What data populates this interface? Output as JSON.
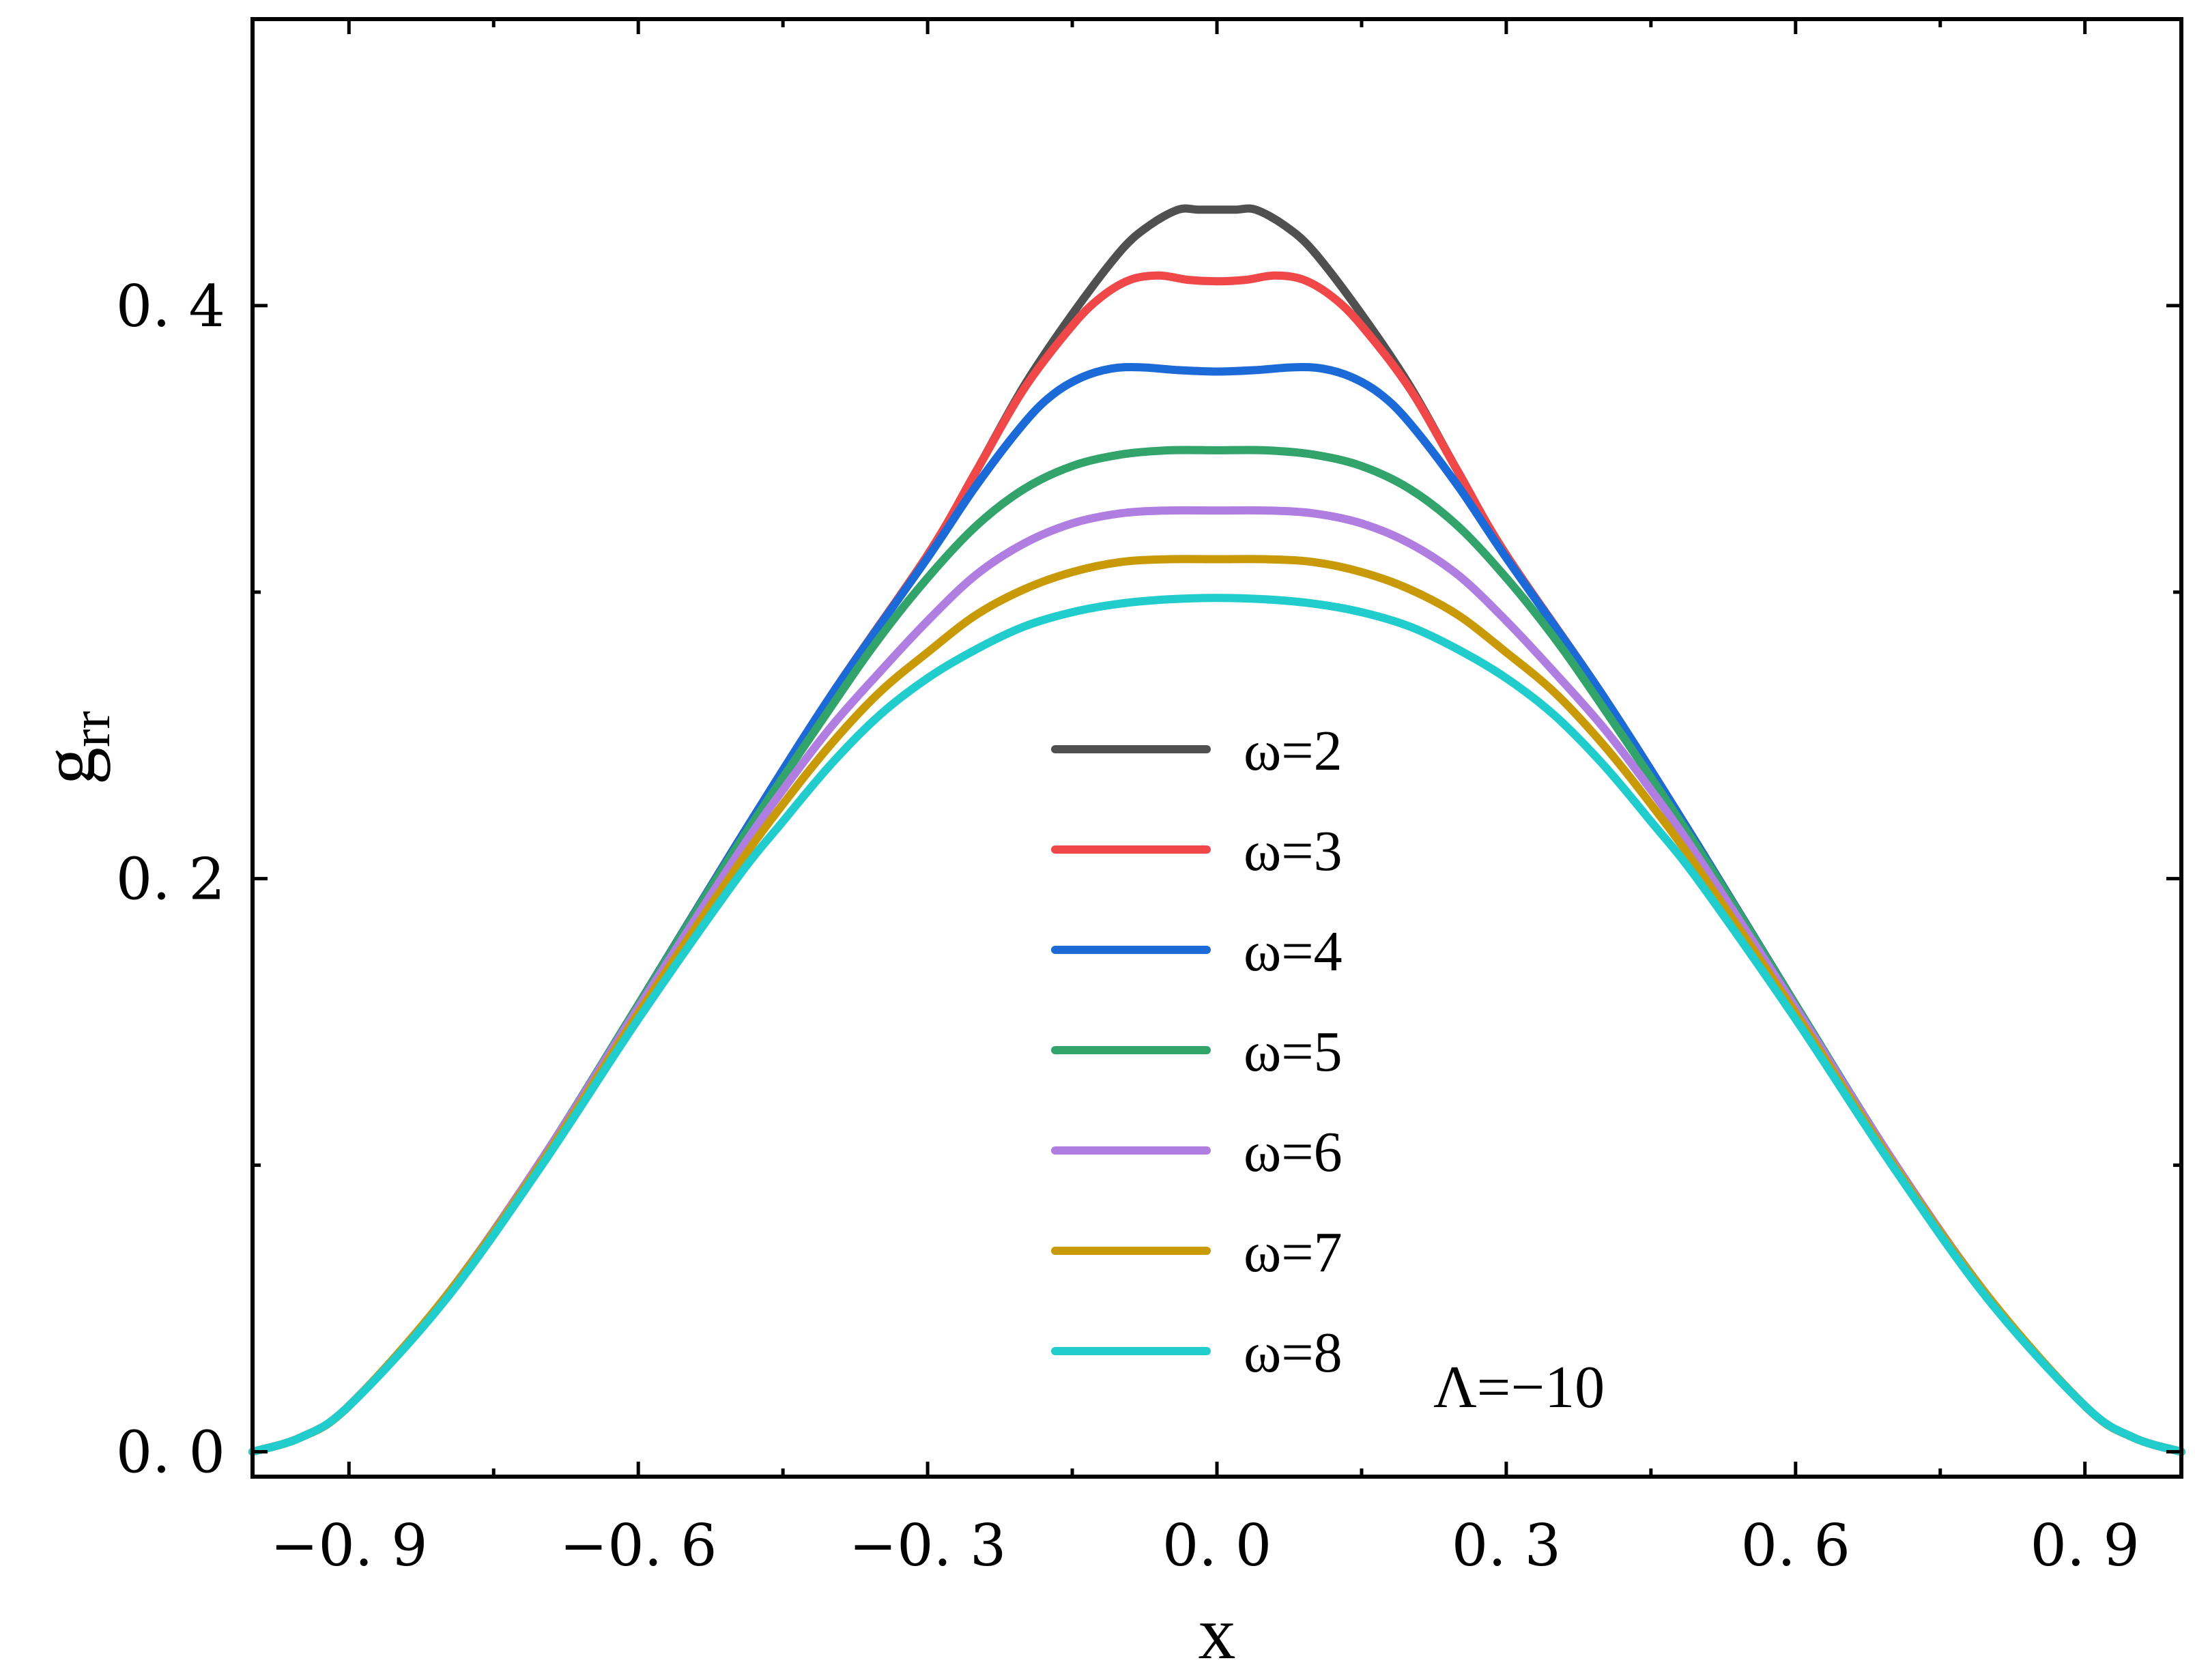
{
  "chart_data": {
    "type": "line",
    "title": "",
    "xlabel": "x",
    "ylabel_base": "g",
    "ylabel_sub": "rr",
    "xlim": [
      -1.0,
      1.0
    ],
    "ylim": [
      -0.0087,
      0.5
    ],
    "x_ticks": [
      -0.9,
      -0.6,
      -0.3,
      0.0,
      0.3,
      0.6,
      0.9
    ],
    "x_tick_labels": [
      "−0. 9",
      "−0. 6",
      "−0. 3",
      "0. 0",
      "0. 3",
      "0. 6",
      "0. 9"
    ],
    "x_minor_ticks": [
      -0.75,
      -0.45,
      -0.15,
      0.15,
      0.45,
      0.75
    ],
    "y_ticks": [
      0.0,
      0.2,
      0.4
    ],
    "y_tick_labels": [
      "0. 0",
      "0. 2",
      "0. 4"
    ],
    "y_minor_ticks": [
      0.1,
      0.3
    ],
    "annotation": "Λ=−10",
    "grid": false,
    "legend_position": "center-bottom",
    "series": [
      {
        "name": "ω=2",
        "color": "#505050",
        "x": [
          -1.0,
          -0.95,
          -0.9,
          -0.8,
          -0.7,
          -0.6,
          -0.5,
          -0.4,
          -0.3,
          -0.25,
          -0.2,
          -0.15,
          -0.1,
          -0.07,
          -0.04,
          -0.02,
          0.0,
          0.02,
          0.04,
          0.07,
          0.1,
          0.15,
          0.2,
          0.25,
          0.3,
          0.4,
          0.5,
          0.6,
          0.7,
          0.8,
          0.9,
          0.95,
          1.0
        ],
        "y": [
          0.0,
          0.005,
          0.016,
          0.054,
          0.102,
          0.156,
          0.211,
          0.264,
          0.313,
          0.342,
          0.372,
          0.397,
          0.419,
          0.428,
          0.4335,
          0.4335,
          0.4335,
          0.4335,
          0.4335,
          0.428,
          0.419,
          0.397,
          0.372,
          0.342,
          0.313,
          0.264,
          0.211,
          0.156,
          0.102,
          0.054,
          0.016,
          0.005,
          0.0
        ]
      },
      {
        "name": "ω=3",
        "color": "#f04848",
        "x": [
          -1.0,
          -0.95,
          -0.9,
          -0.8,
          -0.7,
          -0.6,
          -0.5,
          -0.4,
          -0.3,
          -0.25,
          -0.2,
          -0.15,
          -0.12,
          -0.09,
          -0.06,
          -0.03,
          0.0,
          0.03,
          0.06,
          0.09,
          0.12,
          0.15,
          0.2,
          0.25,
          0.3,
          0.4,
          0.5,
          0.6,
          0.7,
          0.8,
          0.9,
          0.95,
          1.0
        ],
        "y": [
          0.0,
          0.005,
          0.016,
          0.054,
          0.102,
          0.156,
          0.211,
          0.264,
          0.313,
          0.342,
          0.371,
          0.393,
          0.403,
          0.409,
          0.4105,
          0.409,
          0.4085,
          0.409,
          0.4105,
          0.409,
          0.403,
          0.393,
          0.371,
          0.342,
          0.313,
          0.264,
          0.211,
          0.156,
          0.102,
          0.054,
          0.016,
          0.005,
          0.0
        ]
      },
      {
        "name": "ω=4",
        "color": "#1c6ad8",
        "x": [
          -1.0,
          -0.95,
          -0.9,
          -0.8,
          -0.7,
          -0.6,
          -0.5,
          -0.4,
          -0.3,
          -0.25,
          -0.2,
          -0.17,
          -0.14,
          -0.11,
          -0.08,
          -0.04,
          0.0,
          0.04,
          0.08,
          0.11,
          0.14,
          0.17,
          0.2,
          0.25,
          0.3,
          0.4,
          0.5,
          0.6,
          0.7,
          0.8,
          0.9,
          0.95,
          1.0
        ],
        "y": [
          0.0,
          0.005,
          0.016,
          0.054,
          0.102,
          0.156,
          0.211,
          0.264,
          0.312,
          0.337,
          0.359,
          0.369,
          0.375,
          0.378,
          0.3785,
          0.3775,
          0.377,
          0.3775,
          0.3785,
          0.378,
          0.375,
          0.369,
          0.359,
          0.337,
          0.312,
          0.264,
          0.211,
          0.156,
          0.102,
          0.054,
          0.016,
          0.005,
          0.0
        ]
      },
      {
        "name": "ω=5",
        "color": "#31a36b",
        "x": [
          -1.0,
          -0.95,
          -0.9,
          -0.8,
          -0.7,
          -0.6,
          -0.5,
          -0.4,
          -0.35,
          -0.3,
          -0.25,
          -0.2,
          -0.15,
          -0.1,
          -0.05,
          0.0,
          0.05,
          0.1,
          0.15,
          0.2,
          0.25,
          0.3,
          0.35,
          0.4,
          0.5,
          0.6,
          0.7,
          0.8,
          0.9,
          0.95,
          1.0
        ],
        "y": [
          0.0,
          0.005,
          0.016,
          0.054,
          0.102,
          0.156,
          0.21,
          0.26,
          0.284,
          0.305,
          0.323,
          0.336,
          0.344,
          0.348,
          0.3495,
          0.3495,
          0.3495,
          0.348,
          0.344,
          0.336,
          0.323,
          0.305,
          0.284,
          0.26,
          0.21,
          0.156,
          0.102,
          0.054,
          0.016,
          0.005,
          0.0
        ]
      },
      {
        "name": "ω=6",
        "color": "#b07ee0",
        "x": [
          -1.0,
          -0.95,
          -0.9,
          -0.8,
          -0.7,
          -0.6,
          -0.5,
          -0.45,
          -0.4,
          -0.35,
          -0.3,
          -0.25,
          -0.2,
          -0.15,
          -0.1,
          -0.05,
          0.0,
          0.05,
          0.1,
          0.15,
          0.2,
          0.25,
          0.3,
          0.35,
          0.4,
          0.45,
          0.5,
          0.6,
          0.7,
          0.8,
          0.9,
          0.95,
          1.0
        ],
        "y": [
          0.0,
          0.005,
          0.016,
          0.054,
          0.102,
          0.155,
          0.207,
          0.231,
          0.253,
          0.272,
          0.29,
          0.306,
          0.317,
          0.324,
          0.3275,
          0.3285,
          0.3285,
          0.3285,
          0.3275,
          0.324,
          0.317,
          0.306,
          0.29,
          0.272,
          0.253,
          0.231,
          0.207,
          0.155,
          0.102,
          0.054,
          0.016,
          0.005,
          0.0
        ]
      },
      {
        "name": "ω=7",
        "color": "#c89a08",
        "x": [
          -1.0,
          -0.95,
          -0.9,
          -0.8,
          -0.7,
          -0.6,
          -0.5,
          -0.45,
          -0.4,
          -0.35,
          -0.3,
          -0.25,
          -0.2,
          -0.15,
          -0.1,
          -0.05,
          0.0,
          0.05,
          0.1,
          0.15,
          0.2,
          0.25,
          0.3,
          0.35,
          0.4,
          0.45,
          0.5,
          0.6,
          0.7,
          0.8,
          0.9,
          0.95,
          1.0
        ],
        "y": [
          0.0,
          0.005,
          0.016,
          0.054,
          0.101,
          0.153,
          0.203,
          0.226,
          0.247,
          0.265,
          0.279,
          0.292,
          0.301,
          0.307,
          0.3105,
          0.3115,
          0.3115,
          0.3115,
          0.3105,
          0.307,
          0.301,
          0.292,
          0.279,
          0.265,
          0.247,
          0.226,
          0.203,
          0.153,
          0.101,
          0.054,
          0.016,
          0.005,
          0.0
        ]
      },
      {
        "name": "ω=8",
        "color": "#20cccc",
        "x": [
          -1.0,
          -0.95,
          -0.9,
          -0.8,
          -0.7,
          -0.6,
          -0.5,
          -0.45,
          -0.4,
          -0.35,
          -0.3,
          -0.25,
          -0.2,
          -0.15,
          -0.1,
          -0.05,
          0.0,
          0.05,
          0.1,
          0.15,
          0.2,
          0.25,
          0.3,
          0.35,
          0.4,
          0.45,
          0.5,
          0.6,
          0.7,
          0.8,
          0.9,
          0.95,
          1.0
        ],
        "y": [
          0.0,
          0.005,
          0.016,
          0.053,
          0.1,
          0.151,
          0.199,
          0.22,
          0.24,
          0.257,
          0.27,
          0.28,
          0.288,
          0.293,
          0.296,
          0.2975,
          0.298,
          0.2975,
          0.296,
          0.293,
          0.288,
          0.28,
          0.27,
          0.257,
          0.24,
          0.22,
          0.199,
          0.151,
          0.1,
          0.053,
          0.016,
          0.005,
          0.0
        ]
      }
    ]
  }
}
